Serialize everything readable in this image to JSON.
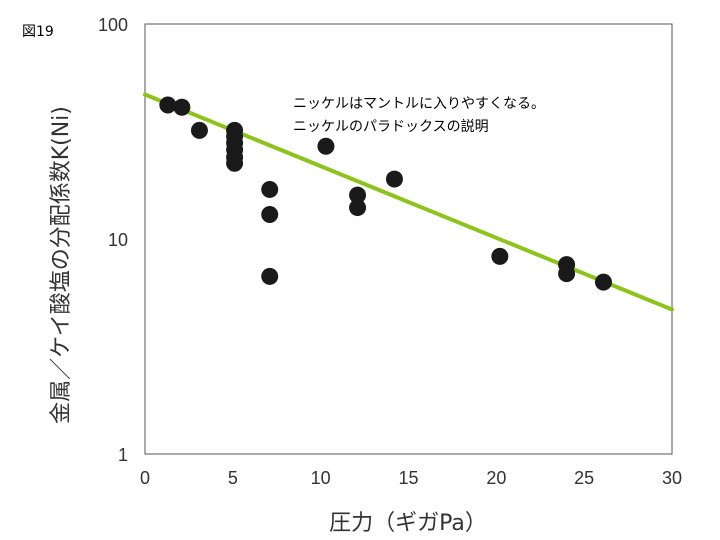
{
  "figure_label": "図19",
  "chart_data": {
    "type": "scatter",
    "title": "",
    "xlabel": "圧力（ギガPa）",
    "ylabel": "金属／ケイ酸塩の分配係数K(Ni)",
    "xlim": [
      0,
      30
    ],
    "ylim": [
      1,
      100
    ],
    "y_scale": "log",
    "x_ticks": [
      {
        "value": 0,
        "label": "0"
      },
      {
        "value": 5,
        "label": "5"
      },
      {
        "value": 10,
        "label": "10"
      },
      {
        "value": 15,
        "label": "15"
      },
      {
        "value": 20,
        "label": "20"
      },
      {
        "value": 25,
        "label": "25"
      },
      {
        "value": 30,
        "label": "30"
      }
    ],
    "y_ticks": [
      {
        "value": 1,
        "label": "1"
      },
      {
        "value": 10,
        "label": "10"
      },
      {
        "value": 100,
        "label": "100"
      }
    ],
    "grid": false,
    "points": [
      {
        "x": 1.3,
        "y": 42
      },
      {
        "x": 2.1,
        "y": 41
      },
      {
        "x": 3.1,
        "y": 32
      },
      {
        "x": 5.1,
        "y": 32
      },
      {
        "x": 5.1,
        "y": 30
      },
      {
        "x": 5.1,
        "y": 28
      },
      {
        "x": 5.1,
        "y": 26
      },
      {
        "x": 5.1,
        "y": 24
      },
      {
        "x": 5.1,
        "y": 22.5
      },
      {
        "x": 7.1,
        "y": 17
      },
      {
        "x": 7.1,
        "y": 13
      },
      {
        "x": 7.1,
        "y": 6.7
      },
      {
        "x": 10.3,
        "y": 27
      },
      {
        "x": 12.1,
        "y": 16
      },
      {
        "x": 12.1,
        "y": 14
      },
      {
        "x": 14.2,
        "y": 19
      },
      {
        "x": 20.2,
        "y": 8.3
      },
      {
        "x": 24.0,
        "y": 7.6
      },
      {
        "x": 24.0,
        "y": 6.9
      },
      {
        "x": 26.1,
        "y": 6.3
      }
    ],
    "trend_line": {
      "x": [
        0,
        30
      ],
      "y": [
        47,
        4.7
      ],
      "color": "#8dc21f"
    },
    "point_color": "#1a1a1a",
    "annotations": [
      "ニッケルはマントルに入りやすくなる。",
      "ニッケルのパラドックスの説明"
    ]
  }
}
